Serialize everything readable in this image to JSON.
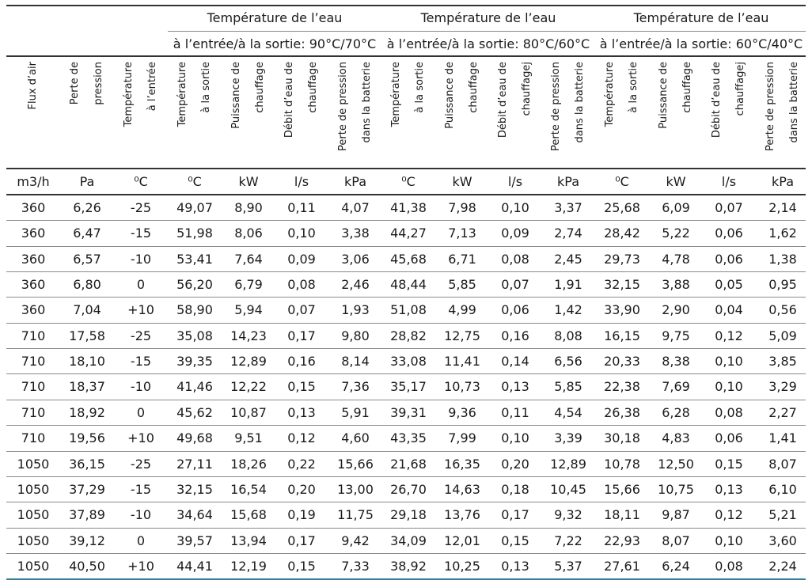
{
  "groups": [
    {
      "line1": "Température de l’eau",
      "line2": "à l’entrée/à la sortie: 90°C/70°C"
    },
    {
      "line1": "Température de l’eau",
      "line2": "à l’entrée/à la sortie: 80°C/60°C"
    },
    {
      "line1": "Température de l’eau",
      "line2": "à l’entrée/à la sortie: 60°C/40°C"
    }
  ],
  "column_headers": [
    [
      "Flux d’air"
    ],
    [
      "Perte de",
      "pression"
    ],
    [
      "Température",
      "à l’entrée"
    ],
    [
      "Température",
      "à la sortie"
    ],
    [
      "Puissance de",
      "chauffage"
    ],
    [
      "Débit d’eau de",
      "chauffage"
    ],
    [
      "Perte de pression",
      "dans la batterie"
    ],
    [
      "Température",
      "à la sortie"
    ],
    [
      "Puissance de",
      "chauffage"
    ],
    [
      "Débit d’eau de",
      "chauffagej"
    ],
    [
      "Perte de pression",
      "dans la batterie"
    ],
    [
      "Température",
      "à la sortie"
    ],
    [
      "Puissance de",
      "chauffage"
    ],
    [
      "Débit d’eau de",
      "chauffagej"
    ],
    [
      "Perte de pression",
      "dans la batterie"
    ]
  ],
  "units": [
    "m3/h",
    "Pa",
    "⁰C",
    "⁰C",
    "kW",
    "l/s",
    "kPa",
    "⁰C",
    "kW",
    "l/s",
    "kPa",
    "⁰C",
    "kW",
    "l/s",
    "kPa"
  ],
  "rows": [
    [
      "360",
      "6,26",
      "-25",
      "49,07",
      "8,90",
      "0,11",
      "4,07",
      "41,38",
      "7,98",
      "0,10",
      "3,37",
      "25,68",
      "6,09",
      "0,07",
      "2,14"
    ],
    [
      "360",
      "6,47",
      "-15",
      "51,98",
      "8,06",
      "0,10",
      "3,38",
      "44,27",
      "7,13",
      "0,09",
      "2,74",
      "28,42",
      "5,22",
      "0,06",
      "1,62"
    ],
    [
      "360",
      "6,57",
      "-10",
      "53,41",
      "7,64",
      "0,09",
      "3,06",
      "45,68",
      "6,71",
      "0,08",
      "2,45",
      "29,73",
      "4,78",
      "0,06",
      "1,38"
    ],
    [
      "360",
      "6,80",
      "0",
      "56,20",
      "6,79",
      "0,08",
      "2,46",
      "48,44",
      "5,85",
      "0,07",
      "1,91",
      "32,15",
      "3,88",
      "0,05",
      "0,95"
    ],
    [
      "360",
      "7,04",
      "+10",
      "58,90",
      "5,94",
      "0,07",
      "1,93",
      "51,08",
      "4,99",
      "0,06",
      "1,42",
      "33,90",
      "2,90",
      "0,04",
      "0,56"
    ],
    [
      "710",
      "17,58",
      "-25",
      "35,08",
      "14,23",
      "0,17",
      "9,80",
      "28,82",
      "12,75",
      "0,16",
      "8,08",
      "16,15",
      "9,75",
      "0,12",
      "5,09"
    ],
    [
      "710",
      "18,10",
      "-15",
      "39,35",
      "12,89",
      "0,16",
      "8,14",
      "33,08",
      "11,41",
      "0,14",
      "6,56",
      "20,33",
      "8,38",
      "0,10",
      "3,85"
    ],
    [
      "710",
      "18,37",
      "-10",
      "41,46",
      "12,22",
      "0,15",
      "7,36",
      "35,17",
      "10,73",
      "0,13",
      "5,85",
      "22,38",
      "7,69",
      "0,10",
      "3,29"
    ],
    [
      "710",
      "18,92",
      "0",
      "45,62",
      "10,87",
      "0,13",
      "5,91",
      "39,31",
      "9,36",
      "0,11",
      "4,54",
      "26,38",
      "6,28",
      "0,08",
      "2,27"
    ],
    [
      "710",
      "19,56",
      "+10",
      "49,68",
      "9,51",
      "0,12",
      "4,60",
      "43,35",
      "7,99",
      "0,10",
      "3,39",
      "30,18",
      "4,83",
      "0,06",
      "1,41"
    ],
    [
      "1050",
      "36,15",
      "-25",
      "27,11",
      "18,26",
      "0,22",
      "15,66",
      "21,68",
      "16,35",
      "0,20",
      "12,89",
      "10,78",
      "12,50",
      "0,15",
      "8,07"
    ],
    [
      "1050",
      "37,29",
      "-15",
      "32,15",
      "16,54",
      "0,20",
      "13,00",
      "26,70",
      "14,63",
      "0,18",
      "10,45",
      "15,66",
      "10,75",
      "0,13",
      "6,10"
    ],
    [
      "1050",
      "37,89",
      "-10",
      "34,64",
      "15,68",
      "0,19",
      "11,75",
      "29,18",
      "13,76",
      "0,17",
      "9,32",
      "18,11",
      "9,87",
      "0,12",
      "5,21"
    ],
    [
      "1050",
      "39,12",
      "0",
      "39,57",
      "13,94",
      "0,17",
      "9,42",
      "34,09",
      "12,01",
      "0,15",
      "7,22",
      "22,93",
      "8,07",
      "0,10",
      "3,60"
    ],
    [
      "1050",
      "40,50",
      "+10",
      "44,41",
      "12,19",
      "0,15",
      "7,33",
      "38,92",
      "10,25",
      "0,13",
      "5,37",
      "27,61",
      "6,24",
      "0,08",
      "2,24"
    ]
  ]
}
